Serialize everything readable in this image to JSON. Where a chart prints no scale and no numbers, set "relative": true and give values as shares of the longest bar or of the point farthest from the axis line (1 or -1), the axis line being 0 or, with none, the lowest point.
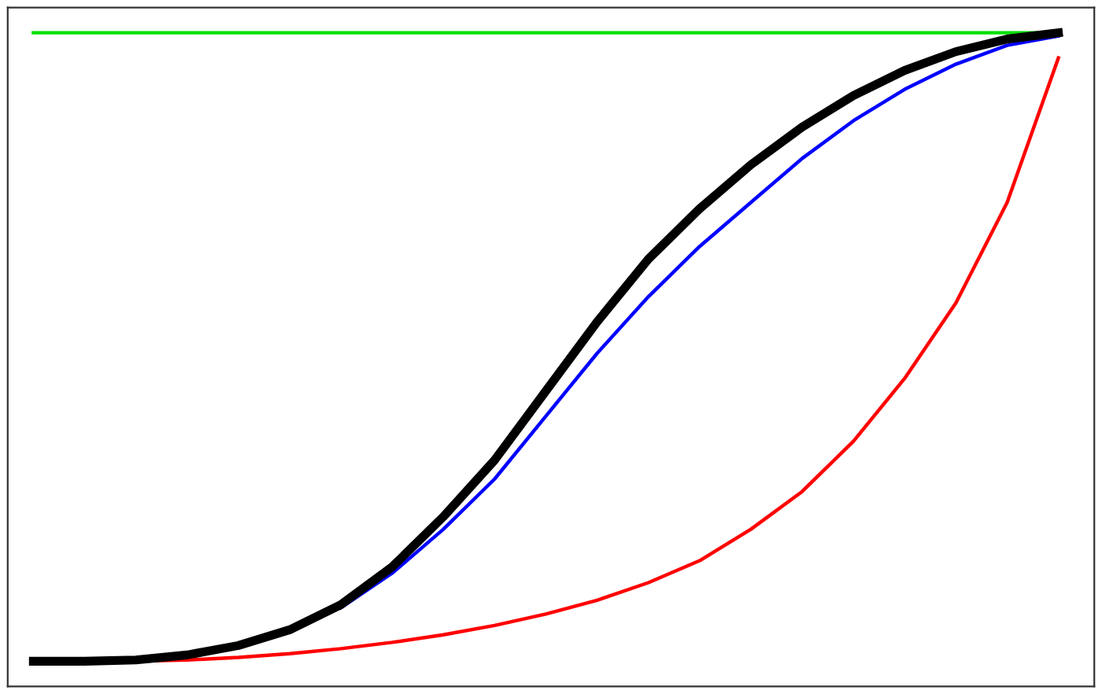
{
  "chart_data": {
    "type": "line",
    "relative": true,
    "legend": false,
    "marker": "none",
    "line_style": "solid",
    "categories": [
      null,
      null,
      null,
      null,
      null,
      null,
      null,
      null,
      null,
      null,
      null,
      null,
      null,
      null,
      null,
      null,
      null,
      null,
      null,
      null,
      null
    ],
    "series": [
      {
        "color": "#00e000",
        "values": [
          1,
          1,
          1,
          1,
          1,
          1,
          1,
          1,
          1,
          1,
          1,
          1,
          1,
          1,
          1,
          1,
          1,
          1,
          1,
          1,
          1
        ]
      },
      {
        "color": "#ff0000",
        "values": [
          0,
          0,
          0,
          0.002,
          0.006,
          0.012,
          0.02,
          0.03,
          0.042,
          0.057,
          0.075,
          0.097,
          0.125,
          0.16,
          0.21,
          0.27,
          0.35,
          0.45,
          0.57,
          0.73,
          0.96
        ]
      },
      {
        "color": "#0000ff",
        "values": [
          null,
          null,
          null,
          null,
          null,
          null,
          0.085,
          0.14,
          0.21,
          0.29,
          0.39,
          0.49,
          0.58,
          0.66,
          0.73,
          0.8,
          0.86,
          0.91,
          0.95,
          0.98,
          0.995
        ]
      },
      {
        "color": "#000000",
        "values": [
          0,
          0,
          0.002,
          0.01,
          0.025,
          0.05,
          0.09,
          0.15,
          0.23,
          0.32,
          0.43,
          0.54,
          0.64,
          0.72,
          0.79,
          0.85,
          0.9,
          0.94,
          0.97,
          0.99,
          1
        ]
      }
    ]
  }
}
